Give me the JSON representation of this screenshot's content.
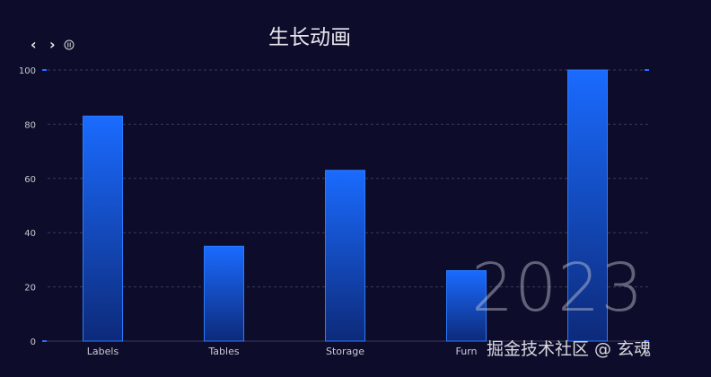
{
  "controls": {
    "prev_icon": "chevron-left-icon",
    "next_icon": "chevron-right-icon",
    "pause_icon": "pause-circle-icon"
  },
  "watermark": {
    "year": "2023",
    "credit": "掘金技术社区 @ 玄魂"
  },
  "colors": {
    "background": "#0d0d2b",
    "bar_top": "#1a6bff",
    "bar_bottom": "#0d2a7a",
    "tick_marker": "#2f6bff"
  },
  "chart_data": {
    "type": "bar",
    "title": "生长动画",
    "categories": [
      "Labels",
      "Tables",
      "Storage",
      "Furn",
      ""
    ],
    "values": [
      83,
      35,
      63,
      26,
      100
    ],
    "ylim": [
      0,
      100
    ],
    "yticks": [
      "0",
      "20",
      "40",
      "60",
      "80",
      "100"
    ],
    "grid": true,
    "xlabel": "",
    "ylabel": ""
  }
}
